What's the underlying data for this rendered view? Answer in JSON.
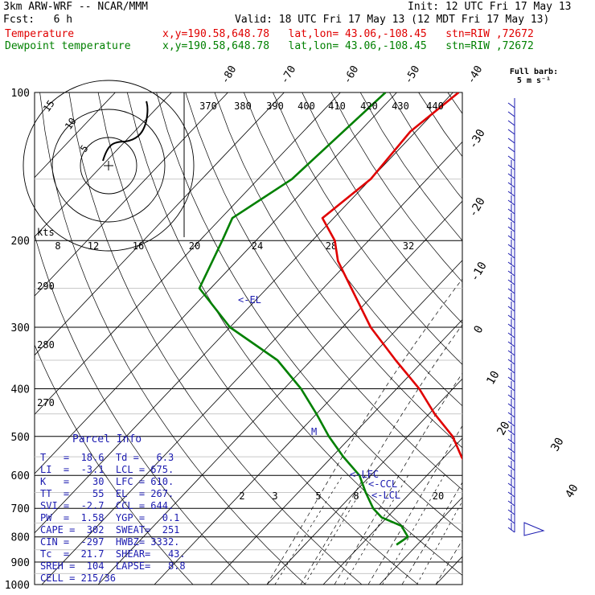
{
  "header": {
    "model_line": "3km ARW-WRF -- NCAR/MMM",
    "fcst_line": "Fcst:   6 h",
    "init_line": "Init: 12 UTC Fri 17 May 13",
    "valid_line": "Valid: 18 UTC Fri 17 May 13 (12 MDT Fri 17 May 13)",
    "temp_label": "Temperature",
    "temp_loc": "x,y=190.58,648.78   lat,lon= 43.06,-108.45   stn=RIW ,72672",
    "dew_label": "Dewpoint temperature",
    "dew_loc": "x,y=190.58,648.78   lat,lon= 43.06,-108.45   stn=RIW ,72672"
  },
  "barb_legend": {
    "title": "Full barb:",
    "unit": "5 m s⁻¹"
  },
  "parcel_info": {
    "title": "Parcel Info",
    "rows": [
      "T   =  18.6  Td =   6.3",
      "LI  =  -3.1  LCL = 675.",
      "K   =    30  LFC = 610.",
      "TT  =    55  EL  = 267.",
      "SVI =  -2.7  CCL = 644.",
      "PW  =  1.58  YGP =   0.1",
      "CAPE =  302  SWEAT=  251",
      "CIN =  -297  HWBZ= 3332.",
      "Tc  =  21.7  SHEAR=   43.",
      "SREH =  104  LAPSE=   8.8",
      "CELL = 215/36"
    ]
  },
  "hodograph": {
    "unit_label": "kts",
    "ring_labels": [
      "5",
      "10",
      "15"
    ],
    "speed_ticks": [
      "8",
      "12",
      "16",
      "20",
      "24",
      "28",
      "32"
    ]
  },
  "chart_data": {
    "type": "line",
    "title": "",
    "y_axis": "pressure (hPa)",
    "pressure_levels": [
      100,
      200,
      300,
      400,
      500,
      600,
      700,
      800,
      900,
      1000
    ],
    "isotherm_labels": [
      "-80",
      "-70",
      "-60",
      "-50",
      "-40",
      "-30",
      "-20",
      "-10",
      "0",
      "10",
      "20",
      "30",
      "40"
    ],
    "theta_labels": [
      "370",
      "380",
      "390",
      "400",
      "410",
      "420",
      "430",
      "440"
    ],
    "theta_low_labels": [
      "290",
      "280",
      "270"
    ],
    "mixing_ratio_labels": [
      "2",
      "3",
      "5",
      "8",
      "20"
    ],
    "annotations": [
      "<-EL",
      "<-LFC",
      "<-CCL",
      "<-LCL",
      "M"
    ],
    "series": [
      {
        "name": "Temperature",
        "color": "#e00000",
        "p": [
          100,
          120,
          150,
          180,
          200,
          220,
          250,
          300,
          350,
          400,
          450,
          500,
          550,
          600,
          650,
          675,
          700,
          720,
          750,
          780,
          800,
          830
        ],
        "t": [
          -59,
          -61,
          -60,
          -62,
          -56,
          -52,
          -45,
          -35,
          -25,
          -16,
          -9,
          -2,
          3,
          8,
          13,
          15,
          17,
          18,
          17,
          18,
          19,
          18.6
        ]
      },
      {
        "name": "Dewpoint temperature",
        "color": "#008000",
        "p": [
          100,
          150,
          180,
          200,
          250,
          300,
          350,
          400,
          450,
          500,
          550,
          600,
          650,
          700,
          730,
          760,
          800,
          830
        ],
        "t": [
          -72,
          -74,
          -78,
          -76,
          -72,
          -60,
          -46,
          -37,
          -30,
          -24,
          -18,
          -12,
          -8,
          -4,
          -1,
          4,
          7,
          6.3
        ]
      }
    ],
    "wind_barbs_kt": {
      "direction": "west",
      "note": "profile of wind barbs at right margin"
    }
  },
  "colors": {
    "temperature": "#e00000",
    "dewpoint": "#008000",
    "labels": "#1b1bb0",
    "grid": "#000000"
  }
}
